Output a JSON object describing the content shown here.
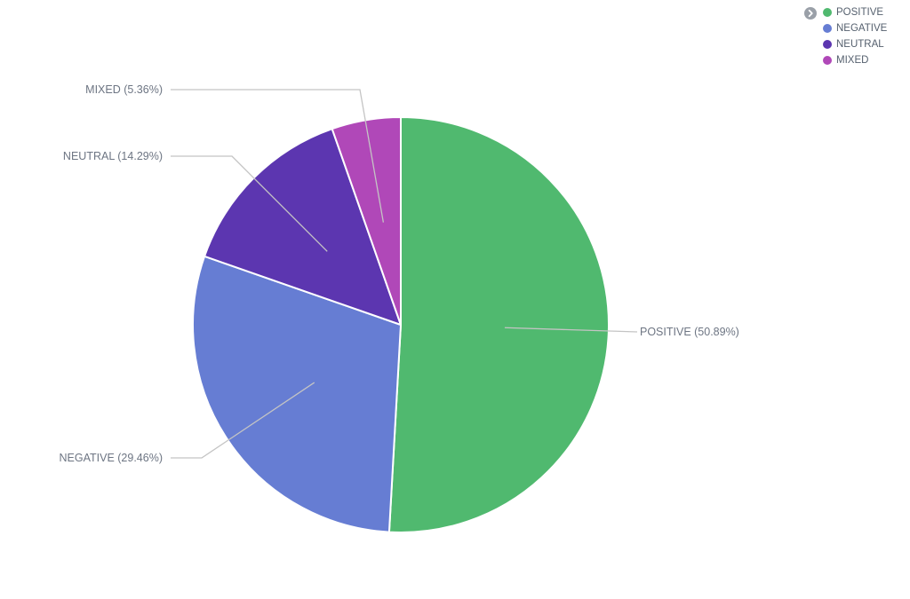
{
  "chart_data": {
    "type": "pie",
    "categories": [
      "POSITIVE",
      "NEGATIVE",
      "NEUTRAL",
      "MIXED"
    ],
    "values": [
      50.89,
      29.46,
      14.29,
      5.36
    ],
    "unit": "%",
    "slice_labels": [
      "POSITIVE (50.89%)",
      "NEGATIVE (29.46%)",
      "NEUTRAL (14.29%)",
      "MIXED (5.36%)"
    ],
    "colors": [
      "#50b96f",
      "#667dd3",
      "#5c36b0",
      "#b048b8"
    ],
    "start_angle_deg": 0,
    "direction": "clockwise",
    "legend": {
      "position": "top-right",
      "items": [
        {
          "label": "POSITIVE",
          "color": "#50b96f"
        },
        {
          "label": "NEGATIVE",
          "color": "#667dd3"
        },
        {
          "label": "NEUTRAL",
          "color": "#5c36b0"
        },
        {
          "label": "MIXED",
          "color": "#b048b8"
        }
      ],
      "toggle_icon": "chevron-right-circle-icon"
    }
  }
}
